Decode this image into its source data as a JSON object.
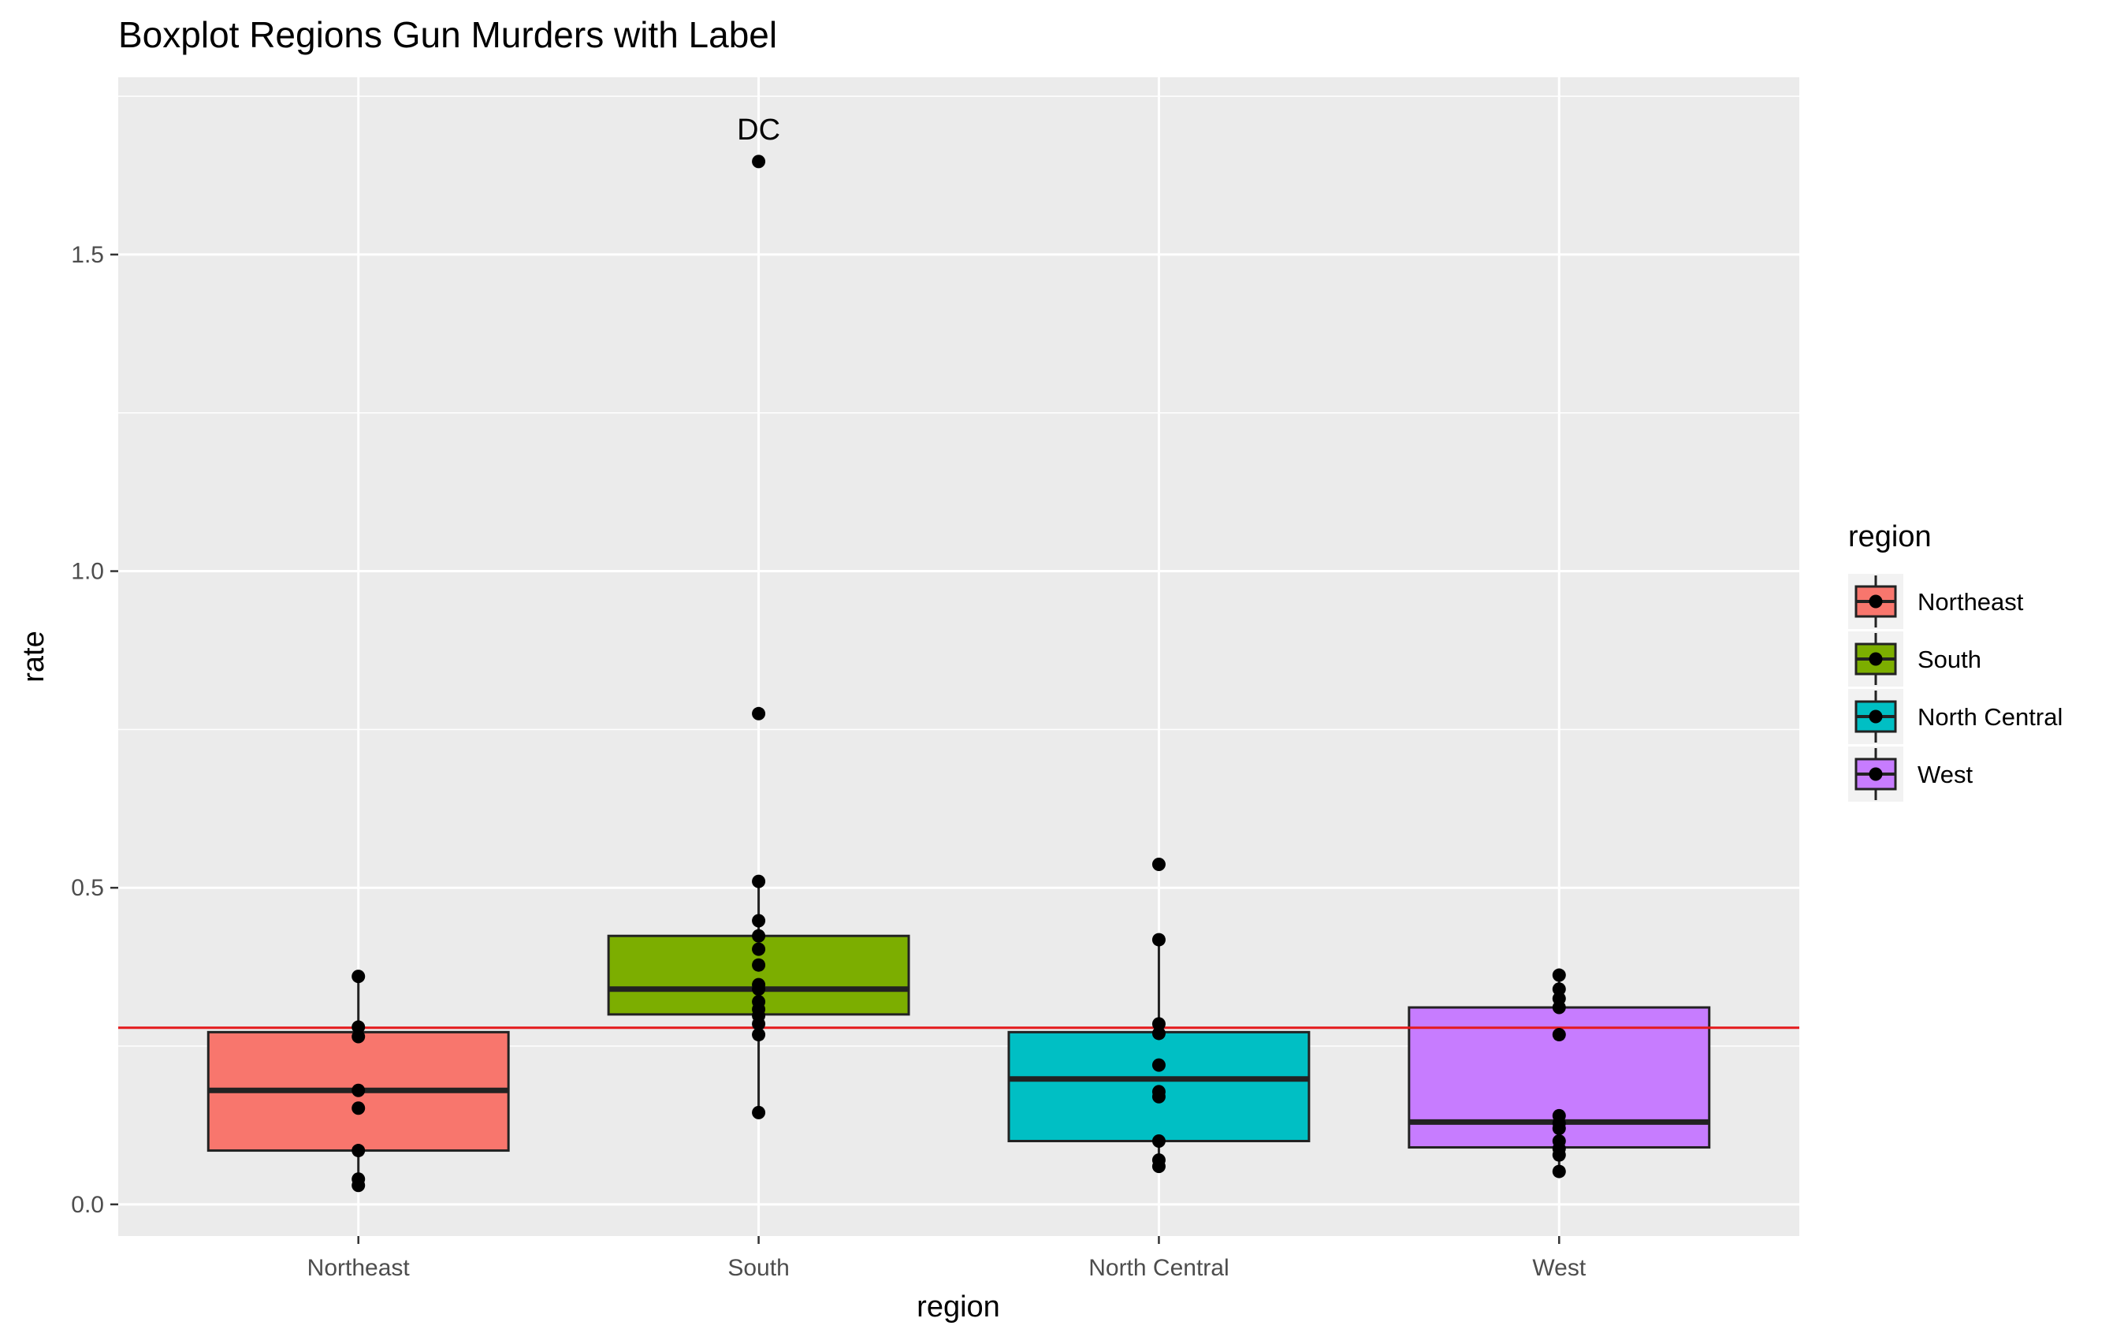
{
  "chart_data": {
    "type": "boxplot",
    "title": "Boxplot Regions Gun Murders with Label",
    "xlabel": "region",
    "ylabel": "rate",
    "ylim": [
      -0.05,
      1.78
    ],
    "yticks": [
      0.0,
      0.5,
      1.0,
      1.5
    ],
    "ytick_labels": [
      "0.0",
      "0.5",
      "1.0",
      "1.5"
    ],
    "categories": [
      "Northeast",
      "South",
      "North Central",
      "West"
    ],
    "colors": [
      "#F8766D",
      "#7CAE00",
      "#00BFC4",
      "#C77CFF"
    ],
    "reference_line": {
      "y": 0.279,
      "color": "#E41A1C"
    },
    "legend": {
      "title": "region",
      "position": "right",
      "labels": [
        "Northeast",
        "South",
        "North Central",
        "West"
      ]
    },
    "boxes": [
      {
        "category": "Northeast",
        "whisker_low": 0.03,
        "q1": 0.085,
        "median": 0.18,
        "q3": 0.272,
        "whisker_high": 0.36
      },
      {
        "category": "South",
        "whisker_low": 0.145,
        "q1": 0.3,
        "median": 0.34,
        "q3": 0.424,
        "whisker_high": 0.51
      },
      {
        "category": "North Central",
        "whisker_low": 0.06,
        "q1": 0.1,
        "median": 0.198,
        "q3": 0.272,
        "whisker_high": 0.418
      },
      {
        "category": "West",
        "whisker_low": 0.055,
        "q1": 0.09,
        "median": 0.13,
        "q3": 0.311,
        "whisker_high": 0.362
      }
    ],
    "points": [
      {
        "category": "Northeast",
        "values": [
          0.36,
          0.28,
          0.265,
          0.18,
          0.152,
          0.085,
          0.04,
          0.03
        ]
      },
      {
        "category": "South",
        "values": [
          1.647,
          0.775,
          0.51,
          0.448,
          0.424,
          0.403,
          0.378,
          0.347,
          0.34,
          0.32,
          0.308,
          0.298,
          0.285,
          0.268,
          0.145
        ]
      },
      {
        "category": "North Central",
        "values": [
          0.537,
          0.418,
          0.285,
          0.27,
          0.22,
          0.178,
          0.17,
          0.1,
          0.07,
          0.06
        ]
      },
      {
        "category": "West",
        "values": [
          0.362,
          0.34,
          0.325,
          0.311,
          0.268,
          0.14,
          0.128,
          0.12,
          0.1,
          0.088,
          0.078,
          0.052
        ]
      }
    ],
    "annotations": [
      {
        "text": "DC",
        "category": "South",
        "y": 1.647
      }
    ]
  }
}
